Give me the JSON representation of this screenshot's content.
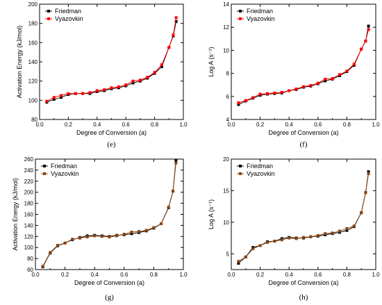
{
  "chart_data": [
    {
      "type": "line",
      "panel_label": "(e)",
      "xlabel": "Degree of Conversion (a)",
      "ylabel": "Activation Energy (kJ/mol)",
      "xlim": [
        0,
        1.0
      ],
      "ylim": [
        80,
        200
      ],
      "xticks": [
        "0.0",
        "0.2",
        "0.4",
        "0.6",
        "0.8",
        "1.0"
      ],
      "yticks": [
        "80",
        "100",
        "120",
        "140",
        "160",
        "180",
        "200"
      ],
      "legend_position": "top-left",
      "x": [
        0.05,
        0.1,
        0.15,
        0.2,
        0.25,
        0.3,
        0.35,
        0.4,
        0.45,
        0.5,
        0.55,
        0.6,
        0.65,
        0.7,
        0.75,
        0.8,
        0.85,
        0.9,
        0.93,
        0.95
      ],
      "series": [
        {
          "name": "Friedman",
          "color": "#000000",
          "values": [
            98,
            101,
            103,
            106,
            107,
            107,
            107,
            109,
            110,
            112,
            113,
            115,
            118,
            120,
            123,
            128,
            135,
            155,
            167,
            182
          ]
        },
        {
          "name": "Vyazovkin",
          "color": "#ff0000",
          "values": [
            99,
            103,
            105,
            107,
            107,
            107,
            108,
            110,
            111,
            113,
            114,
            116,
            120,
            121,
            124,
            129,
            137,
            155,
            168,
            186
          ]
        }
      ]
    },
    {
      "type": "line",
      "panel_label": "(f)",
      "xlabel": "Degree of Conversion (a)",
      "ylabel": "Log A (s⁻¹)",
      "xlim": [
        0,
        1.0
      ],
      "ylim": [
        4,
        14
      ],
      "xticks": [
        "0.0",
        "0.2",
        "0.4",
        "0.6",
        "0.8",
        "1.0"
      ],
      "yticks": [
        "4",
        "6",
        "8",
        "10",
        "12",
        "14"
      ],
      "legend_position": "top-left",
      "x": [
        0.05,
        0.1,
        0.15,
        0.2,
        0.25,
        0.3,
        0.35,
        0.4,
        0.45,
        0.5,
        0.55,
        0.6,
        0.65,
        0.7,
        0.75,
        0.8,
        0.85,
        0.9,
        0.93,
        0.95
      ],
      "series": [
        {
          "name": "Friedman",
          "color": "#000000",
          "values": [
            5.3,
            5.6,
            5.85,
            6.1,
            6.2,
            6.25,
            6.3,
            6.5,
            6.6,
            6.8,
            6.9,
            7.1,
            7.35,
            7.5,
            7.8,
            8.15,
            8.7,
            10.1,
            10.8,
            12.1
          ]
        },
        {
          "name": "Vyazovkin",
          "color": "#ff0000",
          "values": [
            5.45,
            5.65,
            5.9,
            6.2,
            6.25,
            6.3,
            6.35,
            6.5,
            6.65,
            6.85,
            6.95,
            7.15,
            7.5,
            7.55,
            7.9,
            8.2,
            8.8,
            10.1,
            10.8,
            11.8
          ]
        }
      ]
    },
    {
      "type": "line",
      "panel_label": "(g)",
      "xlabel": "Degree of Conversion (a)",
      "ylabel": "Activation Energy (kJ/mol)",
      "xlim": [
        0,
        1.0
      ],
      "ylim": [
        60,
        260
      ],
      "xticks": [
        "0.0",
        "0.2",
        "0.4",
        "0.6",
        "0.8",
        "1.0"
      ],
      "yticks": [
        "60",
        "80",
        "100",
        "120",
        "140",
        "160",
        "180",
        "200",
        "220",
        "240",
        "260"
      ],
      "legend_position": "top-left",
      "x": [
        0.05,
        0.1,
        0.15,
        0.2,
        0.25,
        0.3,
        0.35,
        0.4,
        0.45,
        0.5,
        0.55,
        0.6,
        0.65,
        0.7,
        0.75,
        0.8,
        0.85,
        0.9,
        0.93,
        0.95
      ],
      "series": [
        {
          "name": "Friedman",
          "color": "#000000",
          "values": [
            65,
            90,
            103,
            108,
            114,
            118,
            121,
            122,
            121,
            120,
            122,
            123,
            125,
            127,
            130,
            135,
            143,
            172,
            202,
            258
          ]
        },
        {
          "name": "Vyazovkin",
          "color": "#8b4513",
          "values": [
            66,
            91,
            104,
            108,
            115,
            117,
            119,
            121,
            120,
            119,
            121,
            124,
            128,
            129,
            131,
            136,
            143,
            173,
            202,
            253
          ]
        }
      ]
    },
    {
      "type": "line",
      "panel_label": "(h)",
      "xlabel": "Degree of Conversion (a)",
      "ylabel": "Log A (s⁻¹)",
      "xlim": [
        0,
        1.0
      ],
      "ylim": [
        2.5,
        20
      ],
      "xticks": [
        "0.0",
        "0.2",
        "0.4",
        "0.6",
        "0.8",
        "1.0"
      ],
      "yticks": [
        "5",
        "10",
        "15",
        "20"
      ],
      "legend_position": "top-left",
      "x": [
        0.05,
        0.1,
        0.15,
        0.2,
        0.25,
        0.3,
        0.35,
        0.4,
        0.45,
        0.5,
        0.55,
        0.6,
        0.65,
        0.7,
        0.75,
        0.8,
        0.85,
        0.9,
        0.93,
        0.95
      ],
      "series": [
        {
          "name": "Friedman",
          "color": "#000000",
          "values": [
            3.5,
            4.5,
            6.0,
            6.3,
            6.9,
            7.0,
            7.4,
            7.6,
            7.5,
            7.5,
            7.7,
            7.8,
            8.0,
            8.2,
            8.4,
            8.7,
            9.3,
            11.5,
            14.7,
            18.0
          ]
        },
        {
          "name": "Vyazovkin",
          "color": "#8b4513",
          "values": [
            3.8,
            4.5,
            5.8,
            6.3,
            6.8,
            7.0,
            7.2,
            7.5,
            7.4,
            7.6,
            7.7,
            7.9,
            8.2,
            8.3,
            8.6,
            9.0,
            9.4,
            11.5,
            14.7,
            17.7
          ]
        }
      ]
    }
  ]
}
